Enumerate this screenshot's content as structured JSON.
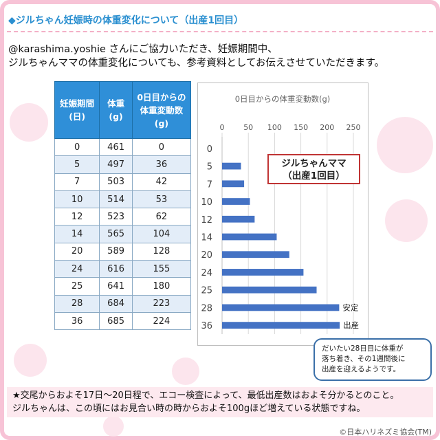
{
  "title": "◆ジルちゃん妊娠時の体重変化について（出産1回目）",
  "intro": {
    "line1": "@karashima.yoshie さんにご協力いただき、妊娠期間中、",
    "line2": "ジルちゃんママの体重変化についても、参考資料としてお伝えさせていただきます。"
  },
  "table": {
    "headers": [
      {
        "line1": "妊娠期間",
        "line2": "(日)"
      },
      {
        "line1": "体重",
        "line2": "(g)"
      },
      {
        "line1": "0日目からの",
        "line2": "体重変動数",
        "line3": "(g)"
      }
    ],
    "rows": [
      [
        "0",
        "461",
        "0"
      ],
      [
        "5",
        "497",
        "36"
      ],
      [
        "7",
        "503",
        "42"
      ],
      [
        "10",
        "514",
        "53"
      ],
      [
        "12",
        "523",
        "62"
      ],
      [
        "14",
        "565",
        "104"
      ],
      [
        "20",
        "589",
        "128"
      ],
      [
        "24",
        "616",
        "155"
      ],
      [
        "25",
        "641",
        "180"
      ],
      [
        "28",
        "684",
        "223"
      ],
      [
        "36",
        "685",
        "224"
      ]
    ]
  },
  "chart_data": {
    "type": "bar",
    "orientation": "horizontal",
    "title": "0日目からの体重変動数(g)",
    "categories": [
      "0",
      "5",
      "7",
      "10",
      "12",
      "14",
      "20",
      "24",
      "25",
      "28",
      "36"
    ],
    "values": [
      0,
      36,
      42,
      53,
      62,
      104,
      128,
      155,
      180,
      223,
      224
    ],
    "xlim": [
      0,
      250
    ],
    "xticks": [
      "0",
      "50",
      "100",
      "150",
      "200",
      "250"
    ],
    "axis_position": "top",
    "grid": true,
    "bar_color": "#4472c4",
    "annotations": [
      {
        "category": "28",
        "text": "安定"
      },
      {
        "category": "36",
        "text": "出産"
      }
    ]
  },
  "chart_label": {
    "line1": "ジルちゃんママ",
    "line2": "（出産1回目）"
  },
  "note": {
    "line1": "だいたい28日目に体重が",
    "line2": "落ち着き、その1週間後に",
    "line3": "出産を迎えるようです。"
  },
  "bottom": {
    "line1": "★交尾からおよそ17日〜20日程で、エコー検査によって、最低出産数はおよそ分かるとのこと。",
    "line2": "ジルちゃんは、この頃にはお見合い時の時からおよそ100gほど増えている状態ですね。"
  },
  "copyright": "©日本ハリネズミ協会(TM)",
  "colors": {
    "accent": "#2a8fd0",
    "frame": "#f7c3d6",
    "header": "#2f8fd8",
    "bar": "#4472c4",
    "bottom_bg": "#fde9ef"
  }
}
